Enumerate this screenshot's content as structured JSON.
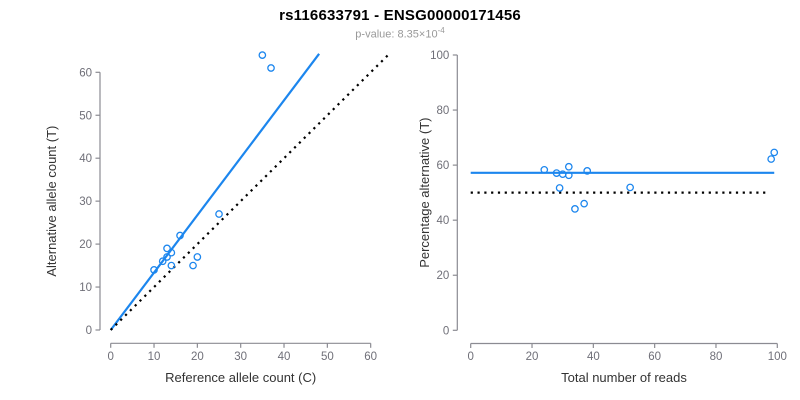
{
  "title": "rs116633791 - ENSG00000171456",
  "subtitle": {
    "label": "p-value: 8.35×10",
    "exponent": "-4"
  },
  "colors": {
    "accent": "#1C86EE",
    "dotted_line": "#000000",
    "axis": "#8b8b92",
    "tick_label": "#6f6f78",
    "axis_title": "#333333",
    "title": "#000000",
    "subtitle": "#999999"
  },
  "chart_data": [
    {
      "type": "scatter",
      "name": "counts-scatter",
      "xlabel": "Reference allele count (C)",
      "ylabel": "Alternative allele count (T)",
      "xlim": [
        0,
        60
      ],
      "ylim": [
        0,
        60
      ],
      "xticks": [
        0,
        10,
        20,
        30,
        40,
        50,
        60
      ],
      "yticks": [
        0,
        10,
        20,
        30,
        40,
        50,
        60
      ],
      "grid": false,
      "marker": "open-circle",
      "points": [
        [
          35,
          64
        ],
        [
          37,
          61
        ],
        [
          25,
          27
        ],
        [
          16,
          22
        ],
        [
          13,
          19
        ],
        [
          14,
          18
        ],
        [
          13,
          17
        ],
        [
          12,
          16
        ],
        [
          14,
          15
        ],
        [
          10,
          14
        ],
        [
          19,
          15
        ],
        [
          20,
          17
        ]
      ],
      "lines": [
        {
          "role": "fit",
          "x1": 0,
          "y1": 0,
          "x2": 48.1,
          "y2": 64.3,
          "style": "solid",
          "color": "#1C86EE"
        },
        {
          "role": "identity",
          "x1": 0,
          "y1": 0,
          "x2": 64.2,
          "y2": 64.2,
          "style": "dotted",
          "color": "#000000"
        }
      ]
    },
    {
      "type": "scatter",
      "name": "percentage-scatter",
      "xlabel": "Total number of reads",
      "ylabel": "Percentage alternative (T)",
      "xlim": [
        0,
        100
      ],
      "ylim": [
        0,
        100
      ],
      "xticks": [
        0,
        20,
        40,
        60,
        80,
        100
      ],
      "yticks": [
        0,
        20,
        40,
        60,
        80,
        100
      ],
      "grid": false,
      "marker": "open-circle",
      "points": [
        [
          24,
          58.3
        ],
        [
          28,
          57.1
        ],
        [
          30,
          56.7
        ],
        [
          32,
          56.3
        ],
        [
          32,
          59.4
        ],
        [
          38,
          57.9
        ],
        [
          29,
          51.7
        ],
        [
          52,
          51.9
        ],
        [
          34,
          44.1
        ],
        [
          37,
          46.0
        ],
        [
          98,
          62.2
        ],
        [
          99,
          64.6
        ]
      ],
      "lines": [
        {
          "role": "mean",
          "x1": 0,
          "y1": 57.2,
          "x2": 99,
          "y2": 57.2,
          "style": "solid",
          "color": "#1C86EE"
        },
        {
          "role": "null",
          "x1": 0,
          "y1": 50,
          "x2": 97,
          "y2": 50,
          "style": "dotted",
          "color": "#000000"
        }
      ]
    }
  ]
}
